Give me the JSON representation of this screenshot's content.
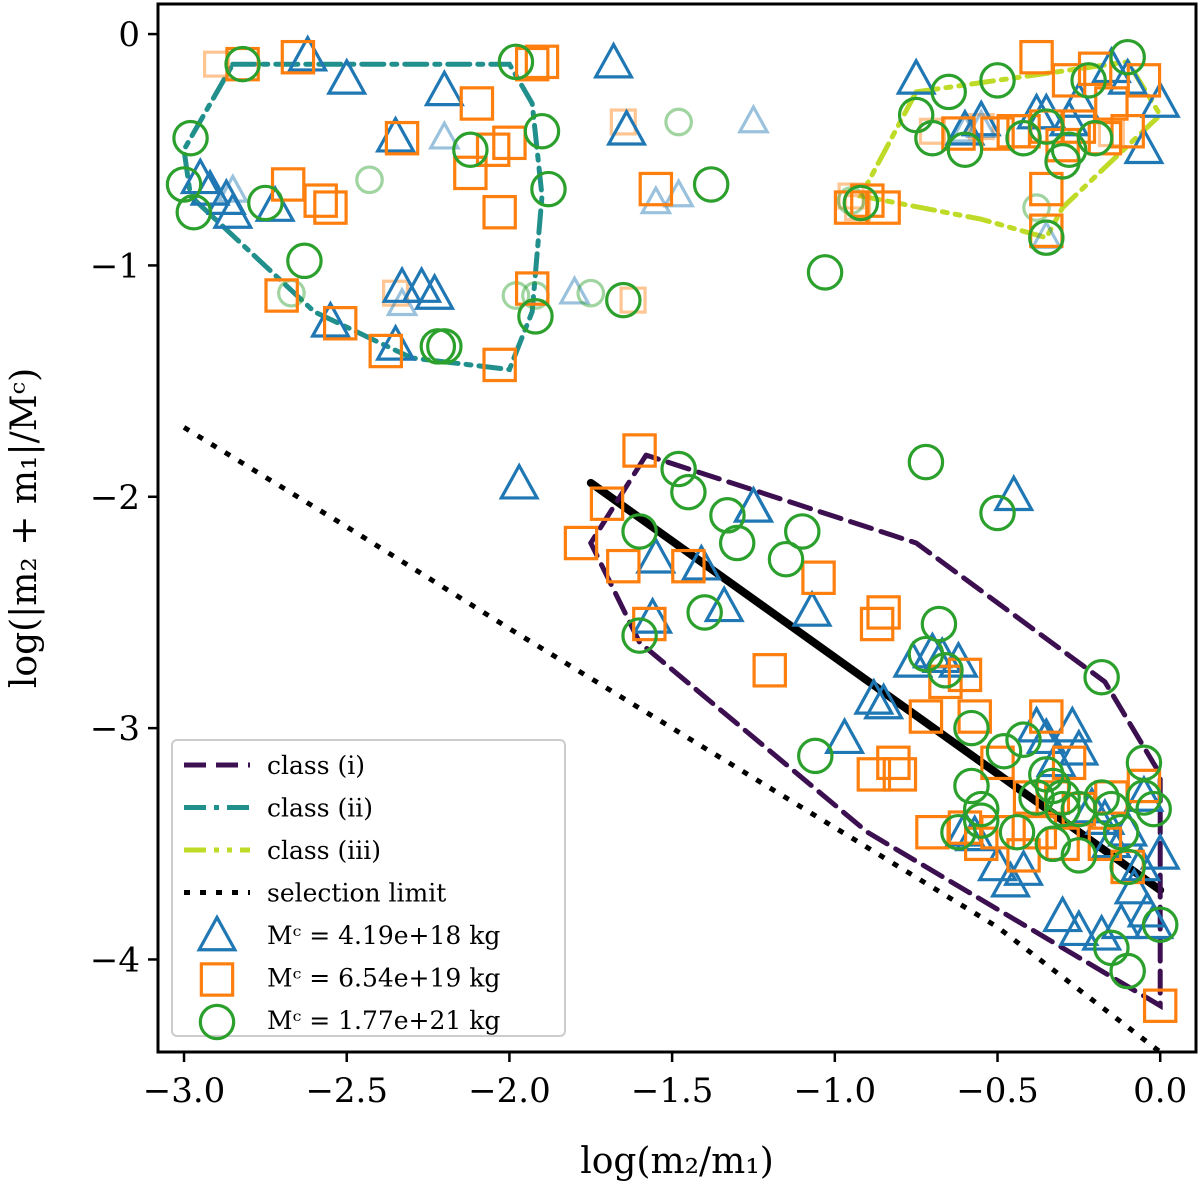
{
  "chart_data": {
    "type": "scatter",
    "xlabel": "log(m₂/m₁)",
    "ylabel": "log(|m₂ + m₁|/Mᶜ)",
    "xlim": [
      -3.08,
      0.11
    ],
    "ylim": [
      -4.4,
      0.13
    ],
    "x_ticks": [
      -3.0,
      -2.5,
      -2.0,
      -1.5,
      -1.0,
      -0.5,
      0.0
    ],
    "x_tick_labels": [
      "−3.0",
      "−2.5",
      "−2.0",
      "−1.5",
      "−1.0",
      "−0.5",
      "0.0"
    ],
    "y_ticks": [
      0,
      -1,
      -2,
      -3,
      -4
    ],
    "y_tick_labels": [
      "0",
      "−1",
      "−2",
      "−3",
      "−4"
    ],
    "grid": false,
    "legend_position": "lower-left",
    "legend": [
      {
        "label": "class (i)",
        "kind": "line",
        "style": "dashed",
        "color": "#3b0f50"
      },
      {
        "label": "class (ii)",
        "kind": "line",
        "style": "dashdot",
        "color": "#21908d"
      },
      {
        "label": "class (iii)",
        "kind": "line",
        "style": "dashdotdot",
        "color": "#bfdb27"
      },
      {
        "label": "selection limit",
        "kind": "line",
        "style": "dotted",
        "color": "#000000"
      },
      {
        "label": "Mᶜ = 4.19e+18 kg",
        "kind": "marker",
        "marker": "triangle",
        "color": "#1f77b4"
      },
      {
        "label": "Mᶜ = 6.54e+19 kg",
        "kind": "marker",
        "marker": "square",
        "color": "#ff7f0e"
      },
      {
        "label": "Mᶜ = 1.77e+21 kg",
        "kind": "marker",
        "marker": "circle",
        "color": "#2ca02c"
      }
    ],
    "lines": [
      {
        "name": "selection limit",
        "style": "dotted",
        "color": "#000000",
        "x": [
          -3.0,
          -2.5,
          -2.0,
          -1.5,
          -1.0,
          -0.5,
          0.0
        ],
        "y": [
          -1.7,
          -2.13,
          -2.57,
          -3.0,
          -3.43,
          -3.86,
          -4.4
        ]
      },
      {
        "name": "fit",
        "style": "solid",
        "color": "#000000",
        "x": [
          -1.75,
          0.0
        ],
        "y": [
          -1.94,
          -3.7
        ]
      },
      {
        "name": "class (i)",
        "style": "dashed",
        "color": "#3b0f50",
        "x": [
          -1.58,
          -1.75,
          -1.6,
          -0.9,
          0.0,
          0.0,
          -0.17,
          -0.75,
          -1.58
        ],
        "y": [
          -1.82,
          -2.2,
          -2.63,
          -3.45,
          -4.2,
          -3.2,
          -2.8,
          -2.2,
          -1.82
        ]
      },
      {
        "name": "class (ii)",
        "style": "dashdot",
        "color": "#21908d",
        "x": [
          -2.85,
          -2.0,
          -1.93,
          -1.9,
          -1.93,
          -2.0,
          -2.3,
          -2.6,
          -2.98,
          -3.0,
          -2.85
        ],
        "y": [
          -0.13,
          -0.13,
          -0.3,
          -0.7,
          -1.2,
          -1.45,
          -1.4,
          -1.2,
          -0.7,
          -0.5,
          -0.13
        ]
      },
      {
        "name": "class (iii)",
        "style": "dashdotdot",
        "color": "#bfdb27",
        "x": [
          -0.75,
          -0.1,
          0.0,
          -0.3,
          -0.35,
          -0.55,
          -0.92,
          -0.75
        ],
        "y": [
          -0.25,
          -0.12,
          -0.35,
          -0.75,
          -0.88,
          -0.8,
          -0.7,
          -0.25
        ]
      }
    ],
    "series": [
      {
        "name": "Mᶜ = 4.19e+18 kg",
        "marker": "triangle",
        "color": "#1f77b4",
        "x": [
          -2.62,
          -2.5,
          -2.2,
          -2.35,
          -2.95,
          -2.92,
          -2.87,
          -2.85,
          -2.72,
          -2.55,
          -2.35,
          -2.27,
          -2.23,
          -2.33,
          -1.97,
          -1.68,
          -1.64,
          -1.56,
          -1.25,
          -1.41,
          -1.34,
          -1.25,
          -1.07,
          -0.97,
          -0.88,
          -0.85,
          -0.76,
          -0.7,
          -0.67,
          -0.62,
          -0.6,
          -0.57,
          -0.5,
          -0.46,
          -0.42,
          -0.38,
          -0.35,
          -0.32,
          -0.27,
          -0.25,
          -0.21,
          -0.17,
          -0.15,
          -0.1,
          -0.06,
          -0.04,
          -0.02,
          0.0,
          -0.3,
          -0.25,
          -0.18,
          -0.12,
          -0.08,
          -0.05,
          -1.55,
          -0.45,
          -0.6,
          -0.75,
          -0.55,
          -0.38,
          -0.28,
          -0.15,
          -0.25,
          -0.1,
          -0.05,
          0.0,
          -0.35
        ],
        "y": [
          -0.1,
          -0.2,
          -0.25,
          -0.45,
          -0.63,
          -0.68,
          -0.72,
          -0.78,
          -0.75,
          -1.25,
          -1.35,
          -1.1,
          -1.13,
          -1.1,
          -1.95,
          -0.13,
          -0.42,
          -2.53,
          -2.05,
          -2.3,
          -2.48,
          -2.05,
          -2.5,
          -3.05,
          -2.88,
          -2.9,
          -2.72,
          -2.68,
          -2.7,
          -2.72,
          -3.45,
          -3.47,
          -3.6,
          -3.67,
          -3.62,
          -3.0,
          -3.05,
          -3.15,
          -3.0,
          -3.1,
          -3.35,
          -3.4,
          -3.5,
          -3.45,
          -3.6,
          -3.8,
          -3.85,
          -3.55,
          -3.82,
          -3.88,
          -3.9,
          -3.85,
          -3.7,
          -3.3,
          -2.27,
          -2.0,
          -0.42,
          -0.2,
          -0.38,
          -0.35,
          -0.38,
          -0.15,
          -0.3,
          -0.2,
          -0.5,
          -0.3,
          -0.35
        ]
      },
      {
        "name": "Mᶜ = 6.54e+19 kg",
        "marker": "square",
        "color": "#ff7f0e",
        "x": [
          -2.82,
          -2.65,
          -1.93,
          -2.33,
          -2.68,
          -2.58,
          -2.55,
          -2.1,
          -2.05,
          -2.0,
          -2.12,
          -2.03,
          -1.93,
          -1.55,
          -2.7,
          -2.52,
          -2.38,
          -2.03,
          -1.9,
          -0.95,
          -0.9,
          -0.85,
          -1.6,
          -1.7,
          -1.78,
          -1.57,
          -1.65,
          -1.45,
          -1.2,
          -1.05,
          -0.85,
          -0.87,
          -0.72,
          -0.82,
          -0.8,
          -0.66,
          -0.6,
          -0.57,
          -0.5,
          -0.4,
          -0.37,
          -0.25,
          -0.3,
          -0.33,
          -0.42,
          -0.15,
          -0.05,
          -0.1,
          0.0,
          -0.17,
          -0.28,
          -0.35,
          -0.5,
          -0.55,
          -0.6,
          -0.7,
          -0.88,
          -0.2,
          -0.35,
          -0.3,
          -0.17,
          -0.1,
          -0.5,
          -0.42,
          -0.35,
          -0.25,
          -0.15,
          -0.05,
          -0.38,
          -0.62,
          -0.45,
          -0.35,
          -0.28
        ],
        "y": [
          -0.13,
          -0.1,
          -0.13,
          -0.45,
          -0.65,
          -0.72,
          -0.75,
          -0.3,
          -0.5,
          -0.47,
          -0.6,
          -0.77,
          -1.1,
          -0.67,
          -1.13,
          -1.25,
          -1.37,
          -1.43,
          -0.12,
          -0.75,
          -0.72,
          -0.75,
          -1.8,
          -2.03,
          -2.2,
          -2.55,
          -2.3,
          -2.3,
          -2.75,
          -2.35,
          -2.5,
          -2.55,
          -2.95,
          -3.15,
          -3.2,
          -2.8,
          -2.77,
          -2.95,
          -3.15,
          -3.3,
          -3.45,
          -3.35,
          -3.5,
          -3.3,
          -3.55,
          -3.3,
          -3.25,
          -3.6,
          -4.2,
          -3.5,
          -3.15,
          -2.95,
          -3.45,
          -3.5,
          -3.43,
          -3.45,
          -3.2,
          -0.15,
          -0.67,
          -0.48,
          -0.45,
          -0.42,
          -0.43,
          -0.42,
          -0.4,
          -0.4,
          -0.3,
          -0.2,
          -0.1,
          -0.43,
          -0.42,
          -0.85,
          -0.2
        ]
      },
      {
        "name": "Mᶜ = 1.77e+21 kg",
        "marker": "circle",
        "color": "#2ca02c",
        "x": [
          -2.82,
          -1.98,
          -2.98,
          -3.0,
          -2.97,
          -2.75,
          -2.63,
          -2.22,
          -2.12,
          -1.9,
          -1.88,
          -1.92,
          -1.65,
          -1.38,
          -1.03,
          -0.92,
          -2.2,
          -1.6,
          -1.48,
          -1.45,
          -1.33,
          -1.3,
          -1.4,
          -1.15,
          -1.1,
          -1.06,
          -0.72,
          -0.5,
          -0.68,
          -0.72,
          -0.66,
          -0.58,
          -0.55,
          -0.48,
          -0.42,
          -0.35,
          -0.3,
          -0.25,
          -0.18,
          -0.12,
          -0.05,
          -0.02,
          -0.1,
          -0.15,
          -0.25,
          -0.3,
          -0.33,
          -0.55,
          -0.58,
          -0.62,
          -0.44,
          -0.38,
          -1.6,
          -0.18,
          -0.05,
          0.0,
          -0.1,
          -0.33,
          -0.15,
          -0.75,
          -0.65,
          -0.5,
          -0.42,
          -0.35,
          -0.28,
          -0.2,
          -0.22,
          -0.35,
          -0.3,
          -0.1,
          -0.6,
          -0.7
        ],
        "y": [
          -0.13,
          -0.12,
          -0.45,
          -0.65,
          -0.77,
          -0.73,
          -0.98,
          -1.35,
          -0.5,
          -0.42,
          -0.67,
          -1.22,
          -1.15,
          -0.65,
          -1.03,
          -0.73,
          -1.35,
          -2.15,
          -1.88,
          -1.98,
          -2.08,
          -2.2,
          -2.5,
          -2.27,
          -2.15,
          -3.12,
          -1.85,
          -2.07,
          -2.55,
          -2.68,
          -2.75,
          -3.0,
          -3.35,
          -3.1,
          -3.05,
          -3.2,
          -3.3,
          -3.35,
          -3.3,
          -3.45,
          -3.3,
          -3.35,
          -3.6,
          -3.95,
          -3.55,
          -3.35,
          -3.25,
          -3.4,
          -3.25,
          -3.45,
          -3.45,
          -3.3,
          -2.6,
          -2.78,
          -3.15,
          -3.85,
          -4.05,
          -3.5,
          -3.35,
          -0.35,
          -0.25,
          -0.2,
          -0.45,
          -0.4,
          -0.5,
          -0.45,
          -0.2,
          -0.88,
          -0.55,
          -0.1,
          -0.5,
          -0.45
        ]
      }
    ],
    "faded_points": [
      {
        "marker": "square",
        "color": "#ff7f0e",
        "x": [
          -2.9,
          -2.35,
          -1.65,
          -1.62,
          -0.95,
          -0.93,
          -0.7,
          -0.55,
          -0.15
        ],
        "y": [
          -0.13,
          -1.12,
          -0.38,
          -1.15,
          -0.7,
          -0.75,
          -0.42,
          -0.4,
          -0.43
        ]
      },
      {
        "marker": "triangle",
        "color": "#1f77b4",
        "x": [
          -2.85,
          -2.33,
          -2.2,
          -1.8,
          -1.55,
          -1.48,
          -1.25,
          -0.6,
          -0.55,
          -0.35
        ],
        "y": [
          -0.68,
          -1.17,
          -0.45,
          -1.12,
          -0.73,
          -0.7,
          -0.38,
          -0.42,
          -0.4,
          -0.88
        ]
      },
      {
        "marker": "circle",
        "color": "#2ca02c",
        "x": [
          -2.67,
          -2.43,
          -1.98,
          -1.92,
          -1.75,
          -1.48,
          -0.95,
          -0.38
        ],
        "y": [
          -1.12,
          -0.63,
          -1.13,
          -1.13,
          -1.12,
          -0.38,
          -0.72,
          -0.75
        ]
      }
    ]
  }
}
